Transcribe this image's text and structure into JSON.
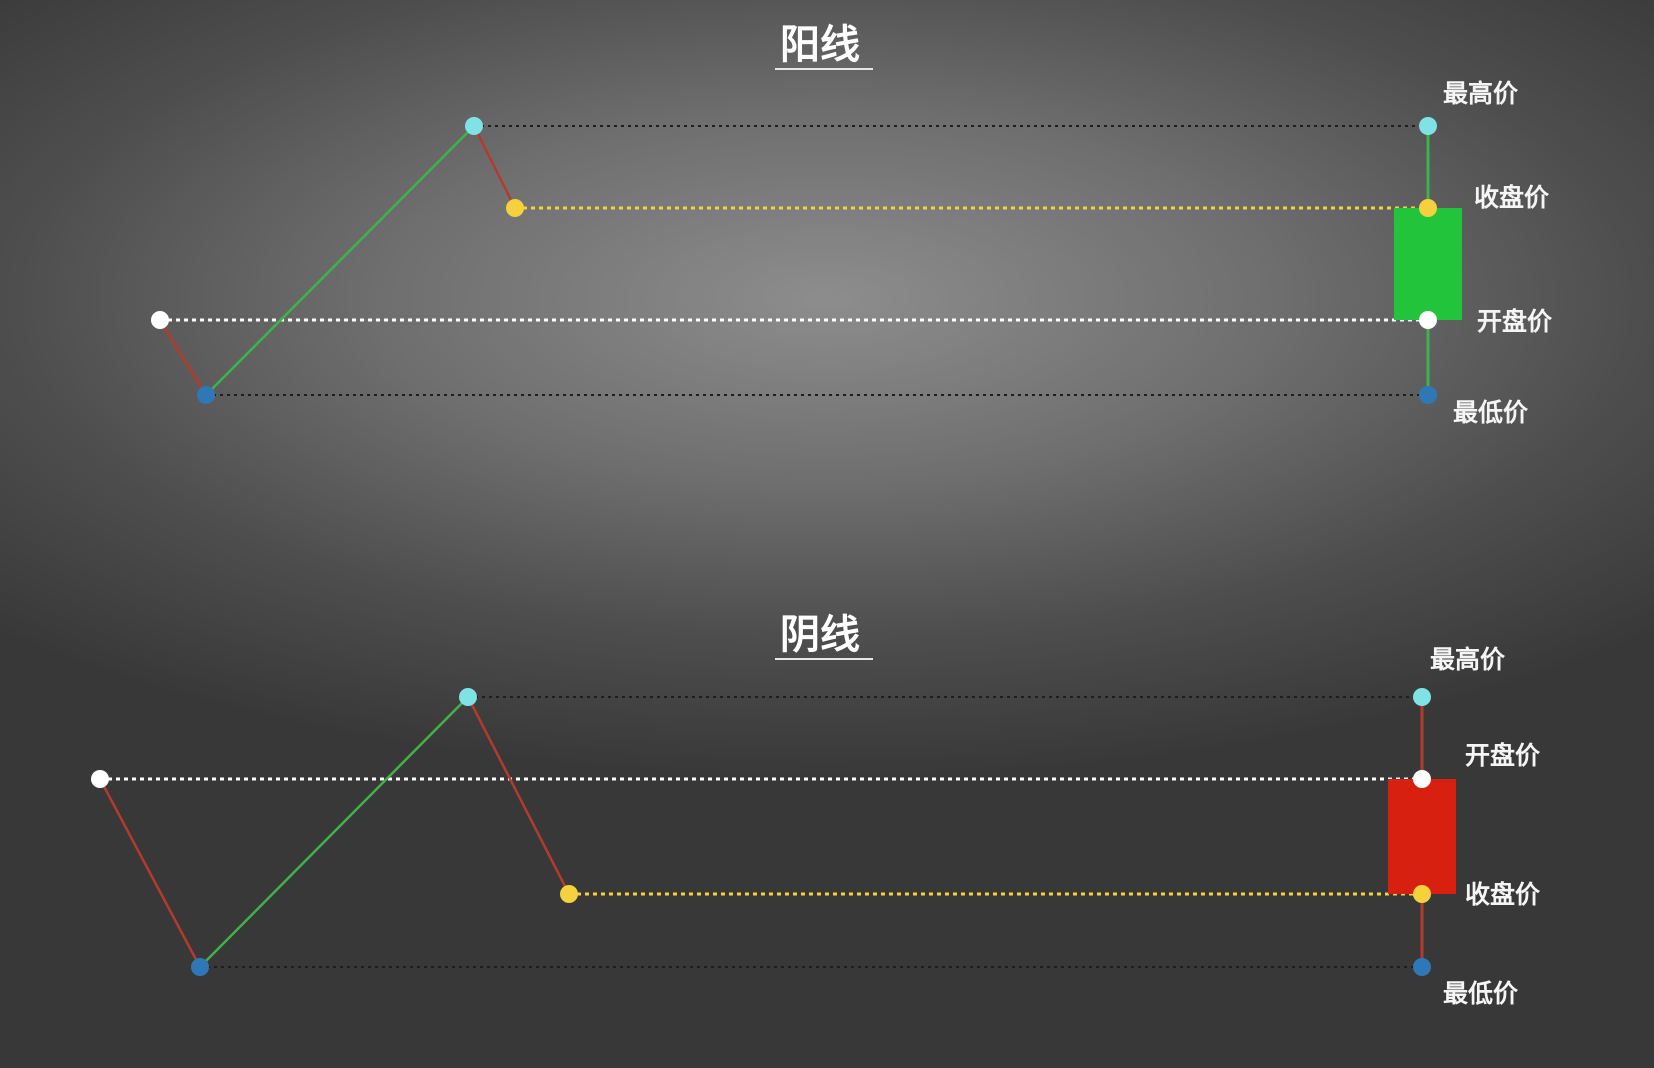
{
  "colors": {
    "rise_segment": "#3fb24a",
    "fall_segment": "#b53a2e",
    "bull_body": "#22c43c",
    "bear_body": "#d7200f",
    "high_dot": "#7fe3e6",
    "close_dot": "#f4d13d",
    "open_dot": "#ffffff",
    "low_dot": "#2f78b8",
    "guide_dark": "#1e1e1e",
    "guide_close": "#f4d13d",
    "guide_open": "#ffffff"
  },
  "panels": [
    {
      "title": "阳线",
      "kind": "bullish",
      "price_path": [
        "open",
        "low",
        "high",
        "close"
      ],
      "labels": {
        "high": "最高价",
        "close": "收盘价",
        "open": "开盘价",
        "low": "最低价"
      }
    },
    {
      "title": "阴线",
      "kind": "bearish",
      "price_path": [
        "open",
        "low",
        "high",
        "close"
      ],
      "labels": {
        "high": "最高价",
        "open": "开盘价",
        "close": "收盘价",
        "low": "最低价"
      }
    }
  ]
}
